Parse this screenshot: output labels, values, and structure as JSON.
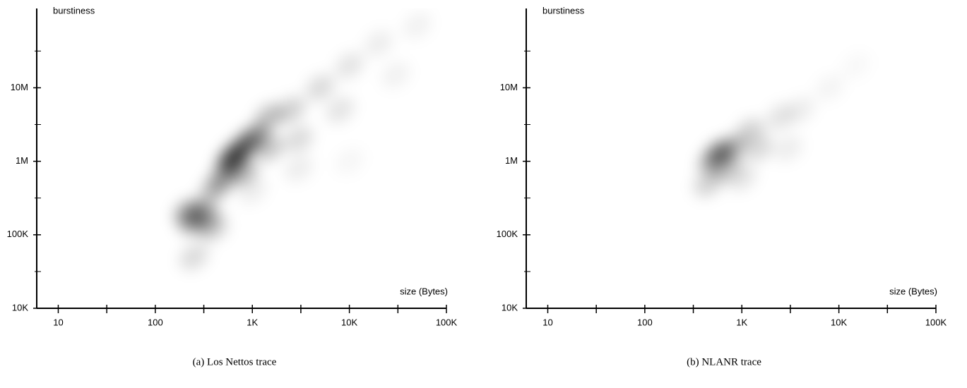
{
  "chart_data": [
    {
      "type": "density",
      "caption": "(a) Los Nettos trace",
      "xlabel": "size (Bytes)",
      "ylabel": "burstiness",
      "xscale": "log",
      "yscale": "log",
      "color": "#000000",
      "xlim": [
        6,
        100000
      ],
      "ylim": [
        10000,
        120000000
      ],
      "xticks": [
        {
          "value": 10,
          "label": "10"
        },
        {
          "value": 100,
          "label": "100"
        },
        {
          "value": 1000,
          "label": "1K"
        },
        {
          "value": 10000,
          "label": "10K"
        },
        {
          "value": 100000,
          "label": "100K"
        }
      ],
      "xminorticks": [
        31.62,
        316.2,
        3162,
        31623
      ],
      "yticks": [
        {
          "value": 10000,
          "label": "10K"
        },
        {
          "value": 100000,
          "label": "100K"
        },
        {
          "value": 1000000,
          "label": "1M"
        },
        {
          "value": 10000000,
          "label": "10M"
        }
      ],
      "yminorticks": [
        31623,
        316228,
        3162278,
        31622777
      ],
      "x": [
        220,
        250,
        300,
        350,
        400,
        500,
        600,
        700,
        900,
        1100,
        800,
        1500,
        1500,
        2500,
        3000,
        5000,
        8000,
        10000,
        20000,
        30000,
        50000,
        3000,
        1000,
        10000,
        400,
        250
      ],
      "y": [
        200000,
        150000,
        200000,
        150000,
        400000,
        600000,
        1000000,
        1300000,
        1800000,
        2200000,
        700000,
        1500000,
        4000000,
        5000000,
        2000000,
        10000000,
        5000000,
        20000000,
        40000000,
        15000000,
        70000000,
        800000,
        400000,
        1000000,
        120000,
        50000
      ],
      "intensity": [
        0.5,
        0.4,
        0.4,
        0.3,
        0.35,
        0.45,
        0.8,
        0.7,
        0.55,
        0.45,
        0.4,
        0.3,
        0.35,
        0.25,
        0.2,
        0.2,
        0.15,
        0.15,
        0.1,
        0.08,
        0.08,
        0.1,
        0.1,
        0.05,
        0.2,
        0.2
      ]
    },
    {
      "type": "density",
      "caption": "(b) NLANR trace",
      "xlabel": "size (Bytes)",
      "ylabel": "burstiness",
      "xscale": "log",
      "yscale": "log",
      "color": "#000000",
      "xlim": [
        6,
        100000
      ],
      "ylim": [
        10000,
        120000000
      ],
      "xticks": [
        {
          "value": 10,
          "label": "10"
        },
        {
          "value": 100,
          "label": "100"
        },
        {
          "value": 1000,
          "label": "1K"
        },
        {
          "value": 10000,
          "label": "10K"
        },
        {
          "value": 100000,
          "label": "100K"
        }
      ],
      "xminorticks": [
        31.62,
        316.2,
        3162,
        31623
      ],
      "yticks": [
        {
          "value": 10000,
          "label": "10K"
        },
        {
          "value": 100000,
          "label": "100K"
        },
        {
          "value": 1000000,
          "label": "1M"
        },
        {
          "value": 10000000,
          "label": "10M"
        }
      ],
      "yminorticks": [
        31623,
        316228,
        3162278,
        31622777
      ],
      "x": [
        600,
        500,
        800,
        450,
        700,
        1200,
        1500,
        2500,
        4000,
        8000,
        3000,
        1000,
        15000
      ],
      "y": [
        1300000,
        1000000,
        1500000,
        500000,
        800000,
        2500000,
        1500000,
        4000000,
        5000000,
        10000000,
        1500000,
        600000,
        20000000
      ],
      "intensity": [
        0.6,
        0.4,
        0.35,
        0.25,
        0.3,
        0.25,
        0.2,
        0.15,
        0.1,
        0.06,
        0.1,
        0.15,
        0.04
      ]
    }
  ]
}
